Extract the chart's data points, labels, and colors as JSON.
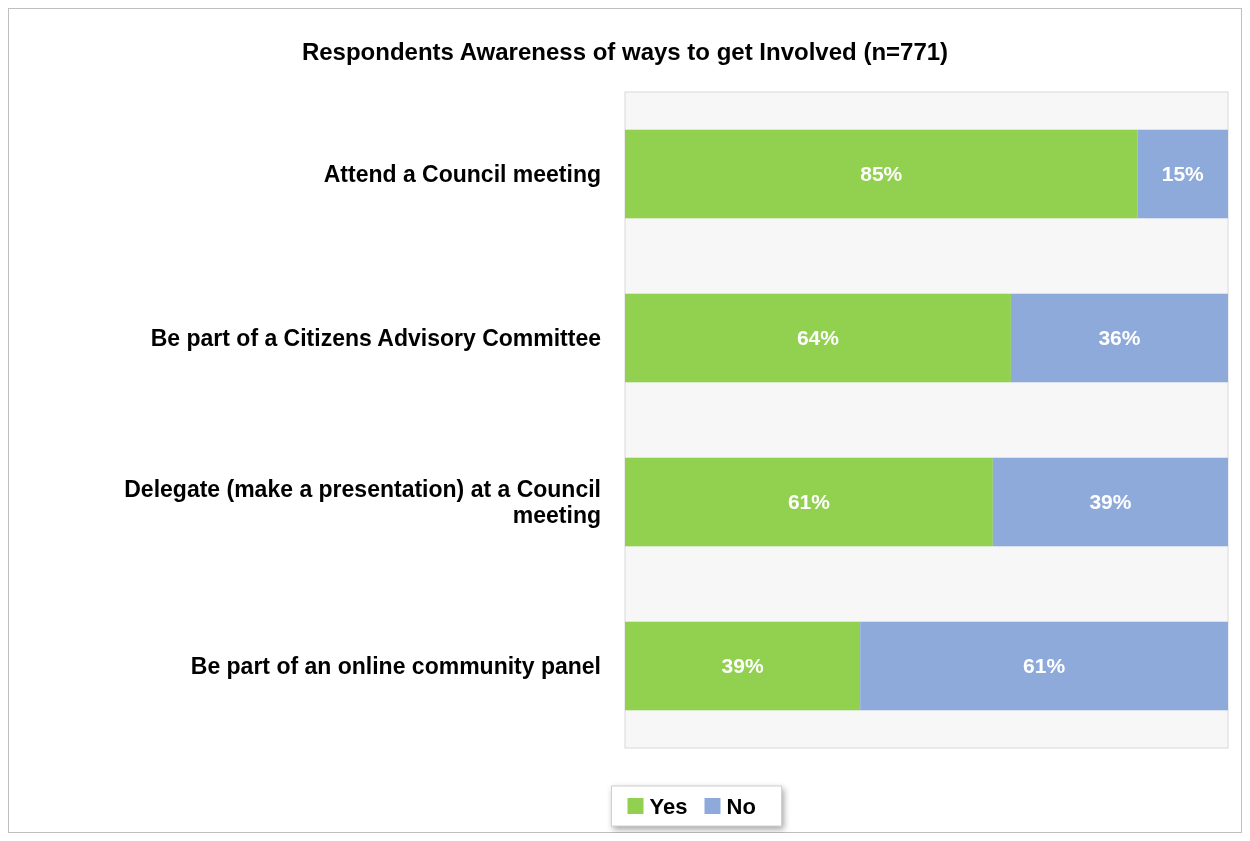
{
  "chart_data": {
    "type": "bar",
    "orientation": "horizontal",
    "stacked": true,
    "title": "Respondents Awareness of ways to get Involved (n=771)",
    "categories": [
      "Attend a Council meeting",
      "Be part of a Citizens Advisory Committee",
      "Delegate (make a presentation) at a Council meeting",
      "Be part of an online community panel"
    ],
    "series": [
      {
        "name": "Yes",
        "color": "#92d050",
        "values": [
          85,
          64,
          61,
          39
        ],
        "value_labels": [
          "85%",
          "64%",
          "61%",
          "39%"
        ]
      },
      {
        "name": "No",
        "color": "#8eaadb",
        "values": [
          15,
          36,
          39,
          61
        ],
        "value_labels": [
          "15%",
          "36%",
          "39%",
          "61%"
        ]
      }
    ],
    "tick_labels": "y",
    "legend": "bottom"
  }
}
